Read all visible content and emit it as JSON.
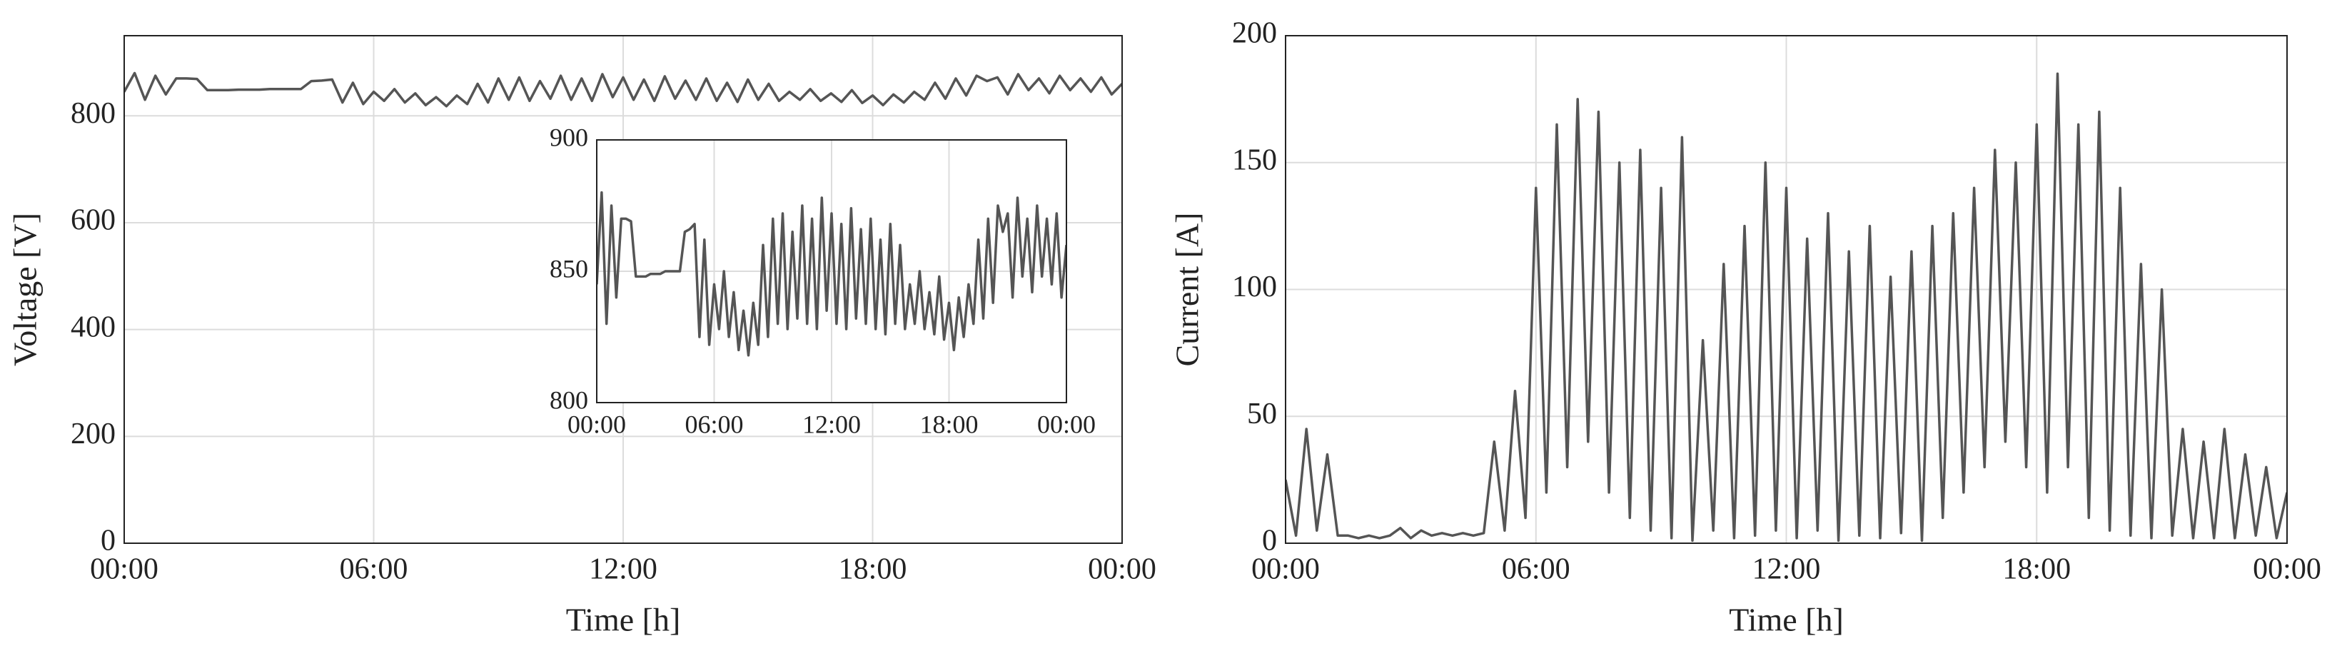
{
  "chart_data": [
    {
      "type": "line",
      "xlabel": "Time [h]",
      "ylabel": "Voltage [V]",
      "x": [
        0,
        0.25,
        0.5,
        0.75,
        1,
        1.25,
        1.5,
        1.75,
        2,
        2.25,
        2.5,
        2.75,
        3,
        3.25,
        3.5,
        3.75,
        4,
        4.25,
        4.5,
        4.75,
        5,
        5.25,
        5.5,
        5.75,
        6,
        6.25,
        6.5,
        6.75,
        7,
        7.25,
        7.5,
        7.75,
        8,
        8.25,
        8.5,
        8.75,
        9,
        9.25,
        9.5,
        9.75,
        10,
        10.25,
        10.5,
        10.75,
        11,
        11.25,
        11.5,
        11.75,
        12,
        12.25,
        12.5,
        12.75,
        13,
        13.25,
        13.5,
        13.75,
        14,
        14.25,
        14.5,
        14.75,
        15,
        15.25,
        15.5,
        15.75,
        16,
        16.25,
        16.5,
        16.75,
        17,
        17.25,
        17.5,
        17.75,
        18,
        18.25,
        18.5,
        18.75,
        19,
        19.25,
        19.5,
        19.75,
        20,
        20.25,
        20.5,
        20.75,
        21,
        21.25,
        21.5,
        21.75,
        22,
        22.25,
        22.5,
        22.75,
        23,
        23.25,
        23.5,
        23.75,
        24
      ],
      "series": [
        {
          "color": "#555555",
          "values": [
            845,
            880,
            830,
            875,
            840,
            870,
            870,
            869,
            848,
            848,
            848,
            849,
            849,
            849,
            850,
            850,
            850,
            850,
            865,
            866,
            868,
            825,
            862,
            822,
            845,
            828,
            850,
            825,
            842,
            820,
            835,
            818,
            838,
            822,
            860,
            825,
            870,
            830,
            872,
            828,
            865,
            832,
            875,
            830,
            870,
            828,
            878,
            835,
            872,
            830,
            868,
            828,
            874,
            832,
            866,
            830,
            870,
            828,
            862,
            826,
            868,
            830,
            860,
            828,
            845,
            830,
            850,
            828,
            842,
            826,
            848,
            824,
            838,
            820,
            840,
            825,
            845,
            830,
            862,
            832,
            870,
            838,
            875,
            865,
            872,
            840,
            878,
            848,
            870,
            842,
            875,
            848,
            870,
            845,
            872,
            840,
            860
          ]
        }
      ],
      "xlim": [
        0,
        24
      ],
      "ylim": [
        0,
        950
      ],
      "xticks": [
        {
          "value": 0,
          "label": "00:00"
        },
        {
          "value": 6,
          "label": "06:00"
        },
        {
          "value": 12,
          "label": "12:00"
        },
        {
          "value": 18,
          "label": "18:00"
        },
        {
          "value": 24,
          "label": "00:00"
        }
      ],
      "yticks": [
        0,
        200,
        400,
        600,
        800
      ],
      "grid": true,
      "inset": {
        "xlim": [
          0,
          24
        ],
        "ylim": [
          800,
          900
        ],
        "xticks": [
          {
            "value": 0,
            "label": "00:00"
          },
          {
            "value": 6,
            "label": "06:00"
          },
          {
            "value": 12,
            "label": "12:00"
          },
          {
            "value": 18,
            "label": "18:00"
          },
          {
            "value": 24,
            "label": "00:00"
          }
        ],
        "yticks": [
          800,
          850,
          900
        ],
        "grid": true
      }
    },
    {
      "type": "line",
      "xlabel": "Time [h]",
      "ylabel": "Current [A]",
      "x": [
        0,
        0.25,
        0.5,
        0.75,
        1,
        1.25,
        1.5,
        1.75,
        2,
        2.25,
        2.5,
        2.75,
        3,
        3.25,
        3.5,
        3.75,
        4,
        4.25,
        4.5,
        4.75,
        5,
        5.25,
        5.5,
        5.75,
        6,
        6.25,
        6.5,
        6.75,
        7,
        7.25,
        7.5,
        7.75,
        8,
        8.25,
        8.5,
        8.75,
        9,
        9.25,
        9.5,
        9.75,
        10,
        10.25,
        10.5,
        10.75,
        11,
        11.25,
        11.5,
        11.75,
        12,
        12.25,
        12.5,
        12.75,
        13,
        13.25,
        13.5,
        13.75,
        14,
        14.25,
        14.5,
        14.75,
        15,
        15.25,
        15.5,
        15.75,
        16,
        16.25,
        16.5,
        16.75,
        17,
        17.25,
        17.5,
        17.75,
        18,
        18.25,
        18.5,
        18.75,
        19,
        19.25,
        19.5,
        19.75,
        20,
        20.25,
        20.5,
        20.75,
        21,
        21.25,
        21.5,
        21.75,
        22,
        22.25,
        22.5,
        22.75,
        23,
        23.25,
        23.5,
        23.75,
        24
      ],
      "series": [
        {
          "color": "#555555",
          "values": [
            25,
            3,
            45,
            5,
            35,
            3,
            3,
            2,
            3,
            2,
            3,
            6,
            2,
            5,
            3,
            4,
            3,
            4,
            3,
            4,
            40,
            5,
            60,
            10,
            140,
            20,
            165,
            30,
            175,
            40,
            170,
            20,
            150,
            10,
            155,
            5,
            140,
            2,
            160,
            1,
            80,
            5,
            110,
            2,
            125,
            3,
            150,
            5,
            140,
            2,
            120,
            5,
            130,
            1,
            115,
            3,
            125,
            2,
            105,
            4,
            115,
            1,
            125,
            10,
            130,
            20,
            140,
            30,
            155,
            40,
            150,
            30,
            165,
            20,
            185,
            30,
            165,
            10,
            170,
            5,
            140,
            3,
            110,
            2,
            100,
            3,
            45,
            2,
            40,
            2,
            45,
            2,
            35,
            3,
            30,
            2,
            20
          ]
        }
      ],
      "xlim": [
        0,
        24
      ],
      "ylim": [
        0,
        200
      ],
      "xticks": [
        {
          "value": 0,
          "label": "00:00"
        },
        {
          "value": 6,
          "label": "06:00"
        },
        {
          "value": 12,
          "label": "12:00"
        },
        {
          "value": 18,
          "label": "18:00"
        },
        {
          "value": 24,
          "label": "00:00"
        }
      ],
      "yticks": [
        0,
        50,
        100,
        150,
        200
      ],
      "grid": true
    }
  ]
}
